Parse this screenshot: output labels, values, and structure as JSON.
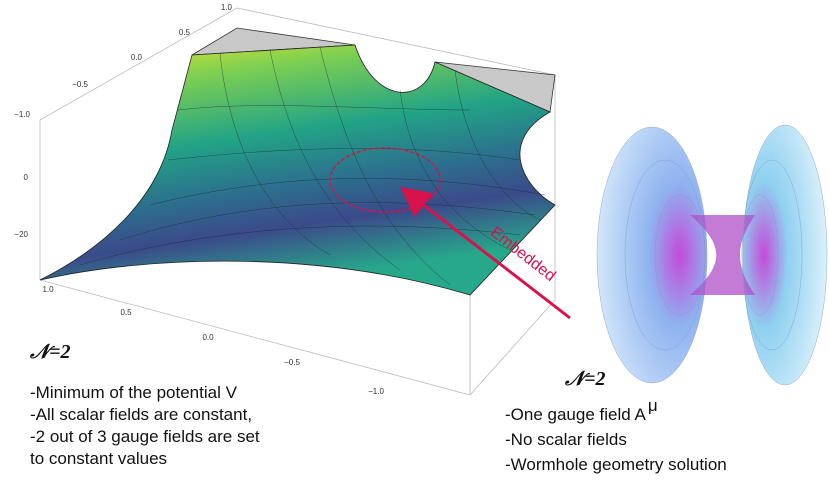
{
  "surface_plot": {
    "back_axis_ticks": [
      "1.0",
      "0.5",
      "0.0",
      "−0.5",
      "−1.0"
    ],
    "z_axis_ticks": [
      "0",
      "−20"
    ],
    "front_axis_ticks": [
      "1.0",
      "0.5",
      "0.0",
      "−0.5",
      "−1.0"
    ]
  },
  "annotation": "Embedded",
  "left_panel": {
    "label": "𝒩=2",
    "lines": [
      "-Minimum of the potential V",
      "-All scalar fields are constant,",
      "-2 out of 3 gauge fields are set",
      "to constant values"
    ]
  },
  "right_panel": {
    "label": "𝒩=2",
    "lines": [
      "-One gauge field A",
      "-No scalar fields",
      "-Wormhole  geometry solution"
    ],
    "superscript": "μ"
  }
}
